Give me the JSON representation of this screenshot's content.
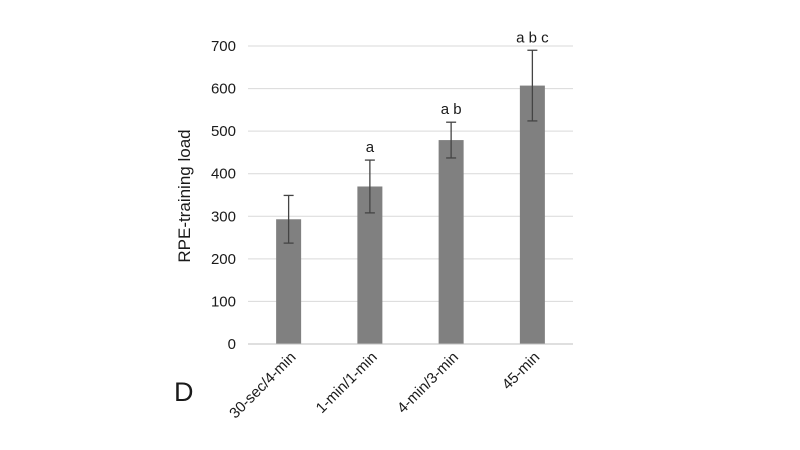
{
  "chart_data": {
    "type": "bar",
    "panel_label": "D",
    "title": "",
    "xlabel": "",
    "ylabel": "RPE-training load",
    "ylim": [
      0,
      700
    ],
    "yticks": [
      0,
      100,
      200,
      300,
      400,
      500,
      600,
      700
    ],
    "grid": true,
    "categories": [
      "30-sec/4-min",
      "1-min/1-min",
      "4-min/3-min",
      "45-min"
    ],
    "values": [
      293,
      370,
      479,
      607
    ],
    "error": [
      56,
      62,
      42,
      83
    ],
    "significance": [
      "",
      "a",
      "a b",
      "a b c"
    ],
    "colors": {
      "bar": "#808080",
      "error": "#444444",
      "grid": "#d9d9d9"
    }
  }
}
